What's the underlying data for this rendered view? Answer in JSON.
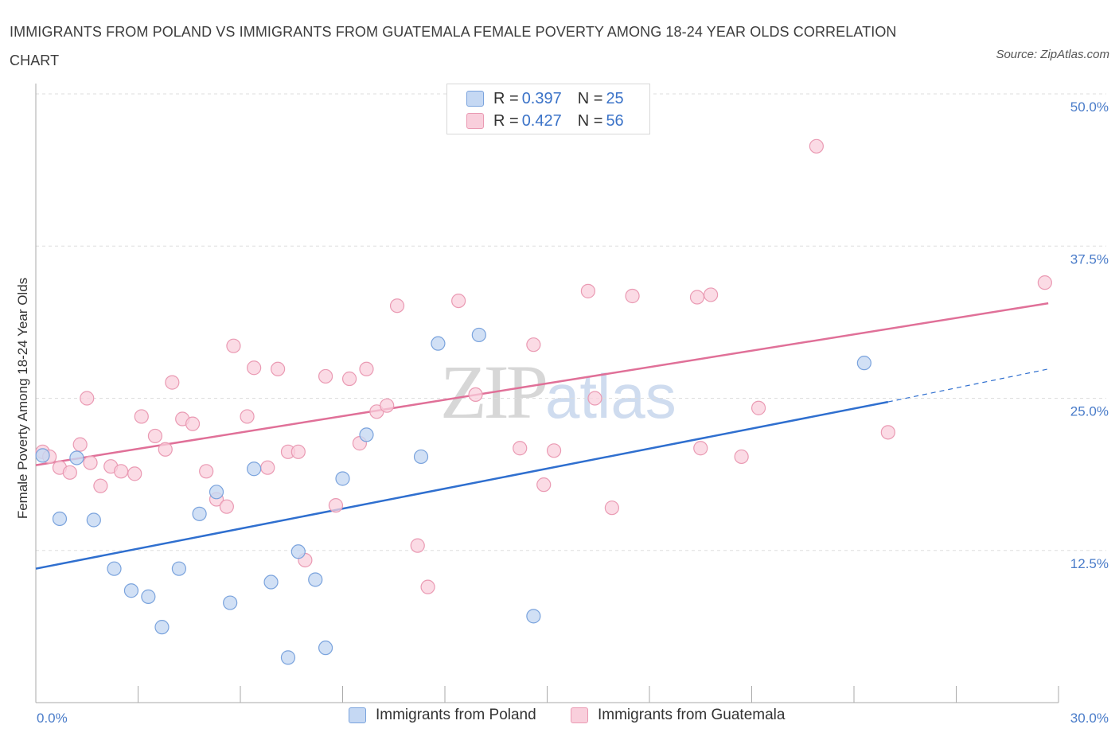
{
  "title": "IMMIGRANTS FROM POLAND VS IMMIGRANTS FROM GUATEMALA FEMALE POVERTY AMONG 18-24 YEAR OLDS CORRELATION CHART",
  "source": "Source: ZipAtlas.com",
  "watermark": {
    "zip": "ZIP",
    "atlas": "atlas"
  },
  "colors": {
    "poland_fill": "#c5d8f3",
    "poland_stroke": "#7aa3dd",
    "poland_line": "#2f6fcf",
    "guatemala_fill": "#f9cfdc",
    "guatemala_stroke": "#ea9ab3",
    "guatemala_line": "#e07098",
    "tick_label": "#4a7cc9",
    "grid": "#dddddd"
  },
  "legend_top": [
    {
      "r_label": "R = ",
      "r_value": "0.397",
      "n_label": "N = ",
      "n_value": "25"
    },
    {
      "r_label": "R = ",
      "r_value": "0.427",
      "n_label": "N = ",
      "n_value": "56"
    }
  ],
  "legend_bottom": [
    "Immigrants from Poland",
    "Immigrants from Guatemala"
  ],
  "chart_data": {
    "type": "scatter",
    "title": "IMMIGRANTS FROM POLAND VS IMMIGRANTS FROM GUATEMALA FEMALE POVERTY AMONG 18-24 YEAR OLDS CORRELATION CHART",
    "xlabel": "",
    "ylabel": "Female Poverty Among 18-24 Year Olds",
    "xlim": [
      0,
      30
    ],
    "ylim": [
      0,
      50
    ],
    "x_tick_labels": [
      "0.0%",
      "30.0%"
    ],
    "y_ticks": [
      12.5,
      25,
      37.5,
      50
    ],
    "y_tick_labels": [
      "12.5%",
      "25.0%",
      "37.5%",
      "50.0%"
    ],
    "grid": true,
    "legend_placement": "top-center",
    "series": [
      {
        "name": "Immigrants from Poland",
        "R": 0.397,
        "N": 25,
        "points": [
          [
            0.2,
            20.3
          ],
          [
            0.7,
            15.1
          ],
          [
            1.2,
            20.1
          ],
          [
            1.7,
            15.0
          ],
          [
            2.3,
            11.0
          ],
          [
            2.8,
            9.2
          ],
          [
            3.3,
            8.7
          ],
          [
            3.7,
            6.2
          ],
          [
            4.2,
            11.0
          ],
          [
            4.8,
            15.5
          ],
          [
            5.3,
            17.3
          ],
          [
            5.7,
            8.2
          ],
          [
            6.4,
            19.2
          ],
          [
            6.9,
            9.9
          ],
          [
            7.4,
            3.7
          ],
          [
            7.7,
            12.4
          ],
          [
            8.2,
            10.1
          ],
          [
            8.5,
            4.5
          ],
          [
            9.0,
            18.4
          ],
          [
            9.7,
            22.0
          ],
          [
            11.3,
            20.2
          ],
          [
            11.8,
            29.5
          ],
          [
            13.0,
            30.2
          ],
          [
            14.6,
            7.1
          ],
          [
            24.3,
            27.9
          ]
        ],
        "trend": {
          "x": [
            0,
            25
          ],
          "y": [
            11.0,
            24.7
          ]
        },
        "trend_extension": {
          "x": [
            25,
            29.7
          ],
          "y": [
            24.7,
            27.4
          ]
        }
      },
      {
        "name": "Immigrants from Guatemala",
        "R": 0.427,
        "N": 56,
        "points": [
          [
            0.2,
            20.6
          ],
          [
            0.4,
            20.2
          ],
          [
            0.7,
            19.3
          ],
          [
            1.0,
            18.9
          ],
          [
            1.3,
            21.2
          ],
          [
            1.6,
            19.7
          ],
          [
            1.9,
            17.8
          ],
          [
            2.2,
            19.4
          ],
          [
            2.5,
            19.0
          ],
          [
            2.9,
            18.8
          ],
          [
            3.1,
            23.5
          ],
          [
            3.5,
            21.9
          ],
          [
            3.8,
            20.8
          ],
          [
            4.0,
            26.3
          ],
          [
            4.3,
            23.3
          ],
          [
            4.6,
            22.9
          ],
          [
            5.0,
            19.0
          ],
          [
            5.3,
            16.7
          ],
          [
            5.6,
            16.1
          ],
          [
            5.8,
            29.3
          ],
          [
            6.2,
            23.5
          ],
          [
            6.4,
            27.5
          ],
          [
            6.8,
            19.3
          ],
          [
            7.1,
            27.4
          ],
          [
            7.4,
            20.6
          ],
          [
            7.7,
            20.6
          ],
          [
            7.9,
            11.7
          ],
          [
            8.5,
            26.8
          ],
          [
            8.8,
            16.2
          ],
          [
            9.2,
            26.6
          ],
          [
            9.5,
            21.3
          ],
          [
            9.7,
            27.4
          ],
          [
            10.0,
            23.9
          ],
          [
            10.3,
            24.4
          ],
          [
            10.6,
            32.6
          ],
          [
            11.2,
            12.9
          ],
          [
            11.5,
            9.5
          ],
          [
            12.4,
            33.0
          ],
          [
            12.9,
            25.3
          ],
          [
            14.2,
            20.9
          ],
          [
            14.6,
            29.4
          ],
          [
            14.9,
            17.9
          ],
          [
            15.2,
            20.7
          ],
          [
            16.2,
            33.8
          ],
          [
            16.4,
            25.0
          ],
          [
            16.9,
            16.0
          ],
          [
            17.5,
            33.4
          ],
          [
            19.4,
            33.3
          ],
          [
            19.5,
            20.9
          ],
          [
            19.8,
            33.5
          ],
          [
            20.7,
            20.2
          ],
          [
            21.2,
            24.2
          ],
          [
            22.9,
            45.7
          ],
          [
            25.0,
            22.2
          ],
          [
            29.6,
            34.5
          ],
          [
            1.5,
            25.0
          ]
        ],
        "trend": {
          "x": [
            0,
            29.7
          ],
          "y": [
            19.5,
            32.8
          ]
        }
      }
    ]
  }
}
